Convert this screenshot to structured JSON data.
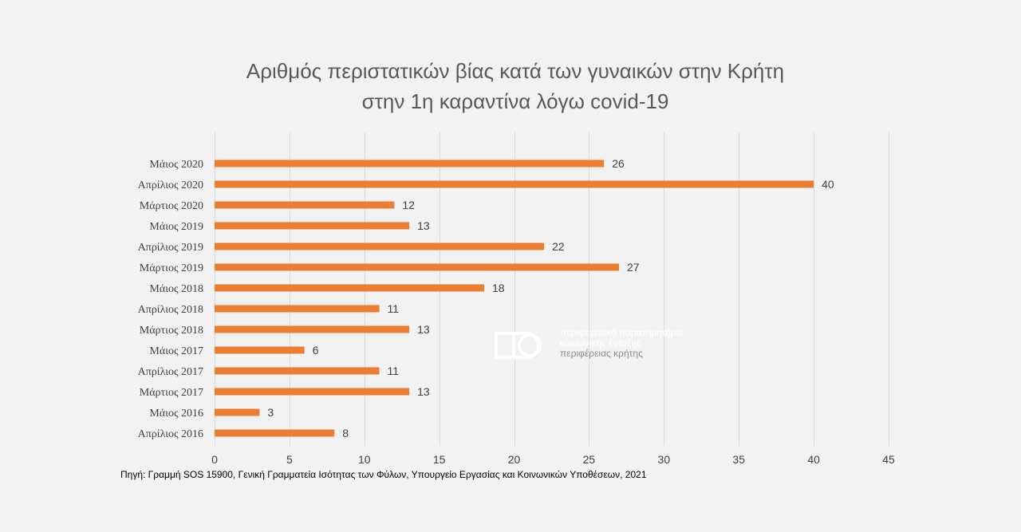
{
  "chart_data": {
    "type": "bar",
    "orientation": "horizontal",
    "title": [
      "Αριθμός περιστατικών βίας κατά των γυναικών στην Κρήτη",
      "στην 1η καραντίνα λόγω covid-19"
    ],
    "categories": [
      "Μάιος 2020",
      "Απρίλιος 2020",
      "Μάρτιος 2020",
      "Μάιος 2019",
      "Απρίλιος 2019",
      "Μάρτιος 2019",
      "Μάιος 2018",
      "Απρίλιος 2018",
      "Μάρτιος 2018",
      "Μάιος 2017",
      "Απρίλιος 2017",
      "Μάρτιος 2017",
      "Μάιος 2016",
      "Απρίλιος 2016"
    ],
    "values": [
      26,
      40,
      12,
      13,
      22,
      27,
      18,
      11,
      13,
      6,
      11,
      13,
      3,
      8
    ],
    "xlim": [
      0,
      45
    ],
    "xticks": [
      0,
      5,
      10,
      15,
      20,
      25,
      30,
      35,
      40,
      45
    ],
    "grid": "vertical",
    "data_labels": true,
    "bar_color": "#ed7d31",
    "grid_color": "#d9d9d9"
  },
  "source_note": "Πηγή: Γραμμή SOS 15900, Γενική Γραμματεία Ισότητας των Φύλων, Υπουργείο Εργασίας και Κοινωνικών Υποθέσεων, 2021",
  "watermark": {
    "logo_icon": "observatory-logo-icon",
    "line1": "περιφερειακό παρατηρητήριο",
    "line2": "κοινωνικής ένταξης",
    "line3": "περιφέρειας κρήτης"
  }
}
